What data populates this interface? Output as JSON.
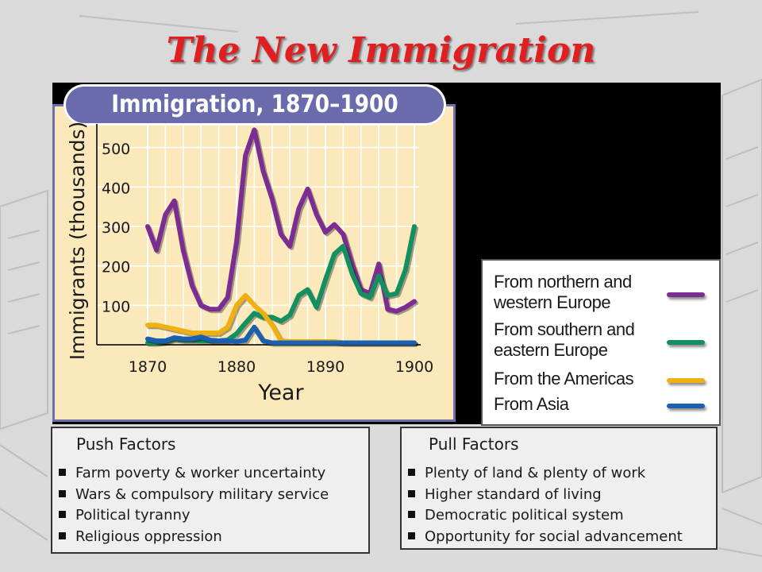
{
  "slide": {
    "title": "The New Immigration"
  },
  "chart_data": {
    "type": "line",
    "title": "Immigration, 1870–1900",
    "xlabel": "Year",
    "ylabel": "Immigrants (thousands)",
    "xlim": [
      1870,
      1900
    ],
    "ylim": [
      0,
      560
    ],
    "x_ticks": [
      "1870",
      "1880",
      "1890",
      "1900"
    ],
    "y_ticks": [
      "100",
      "200",
      "300",
      "400",
      "500"
    ],
    "grid": true,
    "legend_placement": "right",
    "x": [
      1870,
      1871,
      1872,
      1873,
      1874,
      1875,
      1876,
      1877,
      1878,
      1879,
      1880,
      1881,
      1882,
      1883,
      1884,
      1885,
      1886,
      1887,
      1888,
      1889,
      1890,
      1891,
      1892,
      1893,
      1894,
      1895,
      1896,
      1897,
      1898,
      1899,
      1900
    ],
    "series": [
      {
        "name": "From northern and western Europe",
        "color": "#7b2d91",
        "values": [
          300,
          240,
          330,
          365,
          240,
          150,
          100,
          90,
          90,
          120,
          260,
          480,
          545,
          440,
          370,
          280,
          250,
          345,
          395,
          330,
          285,
          305,
          280,
          205,
          140,
          130,
          205,
          90,
          85,
          95,
          110
        ]
      },
      {
        "name": "From southern and eastern Europe",
        "color": "#129060",
        "values": [
          5,
          5,
          8,
          15,
          12,
          12,
          10,
          10,
          10,
          12,
          28,
          55,
          80,
          70,
          70,
          60,
          75,
          125,
          140,
          95,
          165,
          230,
          250,
          180,
          130,
          120,
          175,
          125,
          130,
          190,
          300
        ]
      },
      {
        "name": "From the Americas",
        "color": "#f0b010",
        "values": [
          50,
          50,
          45,
          40,
          35,
          30,
          30,
          30,
          30,
          45,
          100,
          125,
          100,
          80,
          50,
          10,
          8,
          8,
          8,
          8,
          8,
          8,
          5,
          5,
          5,
          5,
          5,
          5,
          5,
          5,
          5
        ]
      },
      {
        "name": "From Asia",
        "color": "#1a5fb0",
        "values": [
          15,
          10,
          10,
          18,
          15,
          15,
          20,
          12,
          10,
          10,
          8,
          12,
          45,
          10,
          5,
          5,
          5,
          5,
          5,
          5,
          5,
          5,
          5,
          5,
          5,
          5,
          5,
          5,
          5,
          5,
          5
        ]
      }
    ]
  },
  "legend": {
    "items": [
      {
        "line1": "From northern and",
        "line2": "western Europe"
      },
      {
        "line1": "From southern and",
        "line2": "eastern Europe"
      },
      {
        "line1": "From the Americas",
        "line2": ""
      },
      {
        "line1": "From Asia",
        "line2": ""
      }
    ]
  },
  "push_factors": {
    "title": "Push Factors",
    "items": [
      "Farm poverty & worker uncertainty",
      "Wars & compulsory military service",
      "Political tyranny",
      "Religious oppression"
    ]
  },
  "pull_factors": {
    "title": "Pull Factors",
    "items": [
      "Plenty of land & plenty of work",
      "Higher standard of living",
      "Democratic political system",
      "Opportunity for social advancement"
    ]
  }
}
